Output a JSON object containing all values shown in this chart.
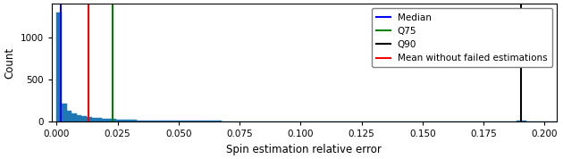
{
  "title": "",
  "xlabel": "Spin estimation relative error",
  "ylabel": "Count",
  "xlim": [
    -0.002,
    0.205
  ],
  "ylim": [
    0,
    1400
  ],
  "xticks": [
    0.0,
    0.025,
    0.05,
    0.075,
    0.1,
    0.125,
    0.15,
    0.175,
    0.2
  ],
  "yticks": [
    0,
    500,
    1000
  ],
  "median_line": 0.0018,
  "q75_line": 0.023,
  "q90_line": 0.1905,
  "mean_nofail_line": 0.013,
  "hist_color": "#1f77b4",
  "median_color": "blue",
  "q75_color": "green",
  "q90_color": "black",
  "mean_nofail_color": "red",
  "legend_labels": [
    "Median",
    "Q75",
    "Q90",
    "Mean without failed estimations"
  ],
  "num_bins": 100,
  "background_color": "#ffffff",
  "bar_heights": [
    1300,
    210,
    130,
    95,
    80,
    65,
    55,
    48,
    42,
    38,
    35,
    30,
    27,
    24,
    22,
    20,
    18,
    17,
    16,
    15,
    14,
    13,
    13,
    12,
    11,
    11,
    10,
    10,
    9,
    9,
    8,
    8,
    8,
    7,
    7,
    7,
    6,
    6,
    6,
    6,
    5,
    5,
    5,
    5,
    5,
    4,
    4,
    4,
    4,
    4,
    4,
    4,
    3,
    3,
    3,
    3,
    3,
    3,
    3,
    3,
    3,
    2,
    2,
    2,
    2,
    2,
    2,
    2,
    2,
    2,
    2,
    2,
    2,
    2,
    2,
    1,
    1,
    1,
    1,
    1,
    1,
    1,
    1,
    1,
    1,
    1,
    1,
    1,
    1,
    1,
    1,
    5,
    12,
    8,
    4,
    2,
    1,
    1,
    1,
    1
  ]
}
